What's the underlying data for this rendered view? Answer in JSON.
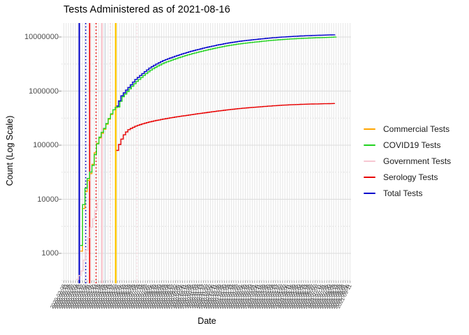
{
  "title": "Tests Administered as of 2021-08-16",
  "y_axis": {
    "title": "Count (Log Scale)",
    "tick_labels": [
      "10000000",
      "1000000",
      "100000",
      "10000",
      "1000"
    ],
    "tick_values": [
      10000000,
      1000000,
      100000,
      10000,
      1000
    ]
  },
  "x_axis": {
    "title": "Date",
    "data_start": "2020-03-13",
    "data_end": "2021-08-16",
    "n_ticks": 124
  },
  "legend": {
    "position": "right",
    "items": [
      {
        "label": "Commercial Tests",
        "color": "#FFA500"
      },
      {
        "label": "COVID19 Tests",
        "color": "#21D21F"
      },
      {
        "label": "Government Tests",
        "color": "#F7C7D2"
      },
      {
        "label": "Serology Tests",
        "color": "#E80000"
      },
      {
        "label": "Total Tests",
        "color": "#0000CC"
      }
    ]
  },
  "colors": {
    "grid_vertical": "#E6E6E6",
    "grid_major": "#DBDBDB",
    "grid_minor": "#E3E3E3",
    "tick_mark": "#8a8a8a",
    "axis_tick_text": "#4d4d4d",
    "x_label_text": "#3d3d3d"
  },
  "chart_data": {
    "type": "line",
    "title": "Tests Administered as of 2021-08-16",
    "xlabel": "Date",
    "ylabel": "Count (Log Scale)",
    "y_scale": "log10",
    "ylim": [
      300,
      20000000
    ],
    "grid": true,
    "legend_position": "right",
    "line_style": "step-after",
    "series": [
      {
        "name": "Commercial Tests",
        "color": "#FFA500",
        "width": 1.4,
        "points": [
          [
            "2020-03-13",
            1100
          ],
          [
            "2020-03-15",
            4200
          ],
          [
            "2020-03-21",
            12000
          ],
          [
            "2020-03-27",
            22000
          ],
          [
            "2020-04-01",
            30000
          ],
          [
            "2020-04-07",
            50000
          ],
          [
            "2020-04-13",
            98000
          ],
          [
            "2020-04-18",
            126000
          ],
          [
            "2020-04-24",
            163000
          ],
          [
            "2020-04-30",
            202000
          ],
          [
            "2020-05-07",
            282000
          ],
          [
            "2020-05-14",
            380000
          ],
          [
            "2020-05-22",
            510000
          ]
        ]
      },
      {
        "name": "Government Tests",
        "color": "#F7C7D2",
        "width": 1.3,
        "points": [
          [
            "2020-03-05",
            330
          ],
          [
            "2020-03-14",
            450
          ],
          [
            "2020-03-18",
            700
          ],
          [
            "2020-03-22",
            900
          ],
          [
            "2020-03-26",
            1500
          ],
          [
            "2020-03-31",
            2500
          ],
          [
            "2020-04-04",
            3500
          ],
          [
            "2020-04-09",
            5000
          ],
          [
            "2020-04-14",
            7500
          ],
          [
            "2020-04-17",
            9000
          ]
        ]
      },
      {
        "name": "COVID19 Tests",
        "color": "#21D21F",
        "width": 1.4,
        "points": [
          [
            "2020-03-13",
            1400
          ],
          [
            "2020-03-15",
            5000
          ],
          [
            "2020-03-21",
            14000
          ],
          [
            "2020-03-27",
            24000
          ],
          [
            "2020-04-01",
            32000
          ],
          [
            "2020-04-07",
            46000
          ],
          [
            "2020-04-13",
            92000
          ],
          [
            "2020-04-18",
            130000
          ],
          [
            "2020-04-24",
            170000
          ],
          [
            "2020-04-30",
            210000
          ],
          [
            "2020-05-07",
            290000
          ],
          [
            "2020-05-14",
            390000
          ],
          [
            "2020-05-22",
            520000
          ],
          [
            "2020-05-25",
            445000
          ],
          [
            "2020-06-04",
            750000
          ],
          [
            "2020-06-18",
            1050000
          ],
          [
            "2020-07-02",
            1450000
          ],
          [
            "2020-07-17",
            1900000
          ],
          [
            "2020-07-31",
            2400000
          ],
          [
            "2020-08-14",
            2850000
          ],
          [
            "2020-08-28",
            3300000
          ],
          [
            "2020-09-12",
            3700000
          ],
          [
            "2020-09-26",
            4100000
          ],
          [
            "2020-10-10",
            4500000
          ],
          [
            "2020-10-24",
            4900000
          ],
          [
            "2020-11-08",
            5300000
          ],
          [
            "2020-11-22",
            5700000
          ],
          [
            "2020-12-13",
            6300000
          ],
          [
            "2021-01-04",
            6900000
          ],
          [
            "2021-01-25",
            7400000
          ],
          [
            "2021-02-15",
            7800000
          ],
          [
            "2021-03-09",
            8200000
          ],
          [
            "2021-03-30",
            8600000
          ],
          [
            "2021-04-20",
            8900000
          ],
          [
            "2021-05-12",
            9200000
          ],
          [
            "2021-06-02",
            9400000
          ],
          [
            "2021-06-23",
            9600000
          ],
          [
            "2021-07-14",
            9750000
          ],
          [
            "2021-08-04",
            9900000
          ],
          [
            "2021-08-16",
            10050000
          ]
        ]
      },
      {
        "name": "Serology Tests",
        "color": "#E80000",
        "width": 1.4,
        "points": [
          [
            "2020-05-25",
            80000
          ],
          [
            "2020-05-28",
            95000
          ],
          [
            "2020-06-01",
            115000
          ],
          [
            "2020-06-05",
            140000
          ],
          [
            "2020-06-10",
            165000
          ],
          [
            "2020-06-18",
            195000
          ],
          [
            "2020-07-02",
            225000
          ],
          [
            "2020-07-17",
            250000
          ],
          [
            "2020-07-31",
            270000
          ],
          [
            "2020-08-14",
            288000
          ],
          [
            "2020-08-28",
            305000
          ],
          [
            "2020-09-12",
            322000
          ],
          [
            "2020-09-26",
            338000
          ],
          [
            "2020-10-10",
            352000
          ],
          [
            "2020-10-24",
            368000
          ],
          [
            "2020-11-08",
            385000
          ],
          [
            "2020-11-22",
            400000
          ],
          [
            "2020-12-13",
            425000
          ],
          [
            "2021-01-04",
            450000
          ],
          [
            "2021-01-25",
            472000
          ],
          [
            "2021-02-15",
            492000
          ],
          [
            "2021-03-09",
            510000
          ],
          [
            "2021-03-30",
            528000
          ],
          [
            "2021-04-20",
            545000
          ],
          [
            "2021-05-12",
            558000
          ],
          [
            "2021-06-02",
            568000
          ],
          [
            "2021-06-23",
            576000
          ],
          [
            "2021-07-14",
            582000
          ],
          [
            "2021-08-04",
            588000
          ],
          [
            "2021-08-16",
            590000
          ]
        ]
      },
      {
        "name": "Total Tests",
        "color": "#0000CC",
        "width": 1.4,
        "points": [
          [
            "2020-05-25",
            530000
          ],
          [
            "2020-06-04",
            840000
          ],
          [
            "2020-06-18",
            1180000
          ],
          [
            "2020-07-02",
            1650000
          ],
          [
            "2020-07-17",
            2150000
          ],
          [
            "2020-07-31",
            2700000
          ],
          [
            "2020-08-14",
            3200000
          ],
          [
            "2020-08-28",
            3700000
          ],
          [
            "2020-09-12",
            4150000
          ],
          [
            "2020-09-26",
            4600000
          ],
          [
            "2020-10-10",
            5050000
          ],
          [
            "2020-10-24",
            5500000
          ],
          [
            "2020-11-08",
            5950000
          ],
          [
            "2020-11-22",
            6400000
          ],
          [
            "2020-12-13",
            7050000
          ],
          [
            "2021-01-04",
            7700000
          ],
          [
            "2021-01-25",
            8250000
          ],
          [
            "2021-02-15",
            8700000
          ],
          [
            "2021-03-09",
            9150000
          ],
          [
            "2021-03-30",
            9550000
          ],
          [
            "2021-04-20",
            9900000
          ],
          [
            "2021-05-12",
            10200000
          ],
          [
            "2021-06-02",
            10450000
          ],
          [
            "2021-06-23",
            10650000
          ],
          [
            "2021-07-14",
            10800000
          ],
          [
            "2021-08-04",
            10950000
          ],
          [
            "2021-08-16",
            11000000
          ]
        ]
      }
    ],
    "vlines": [
      {
        "date": "2020-03-11",
        "color": "#0000CC",
        "style": "solid",
        "width": 2.0
      },
      {
        "date": "2020-03-24",
        "color": "#0000CC",
        "style": "dotted",
        "width": 1.6
      },
      {
        "date": "2020-04-01",
        "color": "#E80000",
        "style": "solid",
        "width": 1.8
      },
      {
        "date": "2020-04-14",
        "color": "#E80000",
        "style": "dotted",
        "width": 1.6
      },
      {
        "date": "2020-04-26",
        "color": "#FFB6C1",
        "style": "solid",
        "width": 1.5
      },
      {
        "date": "2020-05-02",
        "color": "#D8E0EA",
        "style": "solid",
        "width": 1.5
      },
      {
        "date": "2020-05-13",
        "color": "#FFC0CB",
        "style": "dotted",
        "width": 1.4
      },
      {
        "date": "2020-05-24",
        "color": "#FFC800",
        "style": "solid",
        "width": 2.4
      },
      {
        "date": "2020-07-06",
        "color": "#FFD4DC",
        "style": "dotted",
        "width": 1.2
      }
    ]
  }
}
